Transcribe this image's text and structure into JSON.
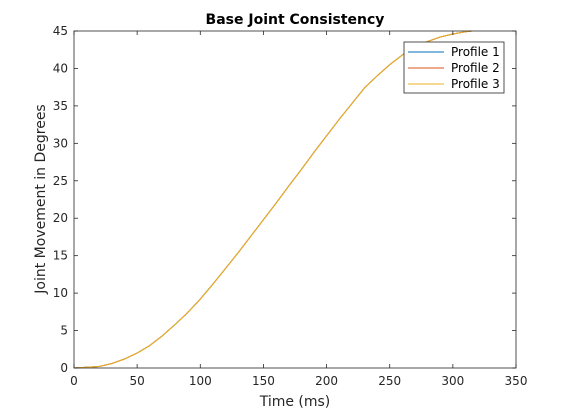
{
  "chart_data": {
    "type": "line",
    "title": "Base Joint Consistency",
    "xlabel": "Time (ms)",
    "ylabel": "Joint Movement in Degrees",
    "xlim": [
      0,
      350
    ],
    "ylim": [
      0,
      45
    ],
    "xticks": [
      "0",
      "50",
      "100",
      "150",
      "200",
      "250",
      "300",
      "350"
    ],
    "yticks": [
      "0",
      "5",
      "10",
      "15",
      "20",
      "25",
      "30",
      "35",
      "40",
      "45"
    ],
    "grid": false,
    "legend_position": "top-right",
    "series": [
      {
        "name": "Profile 1",
        "color": "#0072BD",
        "x": [
          0,
          20,
          30,
          40,
          50,
          60,
          70,
          80,
          90,
          100,
          110,
          120,
          130,
          140,
          150,
          160,
          170,
          180,
          190,
          200,
          210,
          220,
          230,
          240,
          250,
          260,
          270,
          280,
          290,
          300,
          310,
          315
        ],
        "y": [
          0,
          0.2,
          0.6,
          1.2,
          2.0,
          3.0,
          4.3,
          5.8,
          7.4,
          9.2,
          11.2,
          13.3,
          15.4,
          17.6,
          19.8,
          22.0,
          24.3,
          26.5,
          28.8,
          31.0,
          33.2,
          35.3,
          37.4,
          39.0,
          40.5,
          41.8,
          42.8,
          43.6,
          44.2,
          44.6,
          44.9,
          45.0
        ]
      },
      {
        "name": "Profile 2",
        "color": "#D95319",
        "x": [
          0,
          20,
          30,
          40,
          50,
          60,
          70,
          80,
          90,
          100,
          110,
          120,
          130,
          140,
          150,
          160,
          170,
          180,
          190,
          200,
          210,
          220,
          230,
          240,
          250,
          260,
          270,
          280,
          290,
          300,
          310,
          315
        ],
        "y": [
          0,
          0.2,
          0.6,
          1.2,
          2.0,
          3.0,
          4.3,
          5.8,
          7.4,
          9.2,
          11.2,
          13.3,
          15.4,
          17.6,
          19.8,
          22.0,
          24.3,
          26.5,
          28.8,
          31.0,
          33.2,
          35.3,
          37.4,
          39.0,
          40.5,
          41.8,
          42.8,
          43.6,
          44.2,
          44.6,
          44.9,
          45.0
        ]
      },
      {
        "name": "Profile 3",
        "color": "#EDB120",
        "x": [
          0,
          20,
          30,
          40,
          50,
          60,
          70,
          80,
          90,
          100,
          110,
          120,
          130,
          140,
          150,
          160,
          170,
          180,
          190,
          200,
          210,
          220,
          230,
          240,
          250,
          260,
          270,
          280,
          290,
          300,
          310,
          315
        ],
        "y": [
          0,
          0.2,
          0.6,
          1.2,
          2.0,
          3.0,
          4.3,
          5.8,
          7.4,
          9.2,
          11.2,
          13.3,
          15.4,
          17.6,
          19.8,
          22.0,
          24.3,
          26.5,
          28.8,
          31.0,
          33.2,
          35.3,
          37.4,
          39.0,
          40.5,
          41.8,
          42.8,
          43.6,
          44.2,
          44.6,
          44.9,
          45.0
        ]
      }
    ]
  }
}
